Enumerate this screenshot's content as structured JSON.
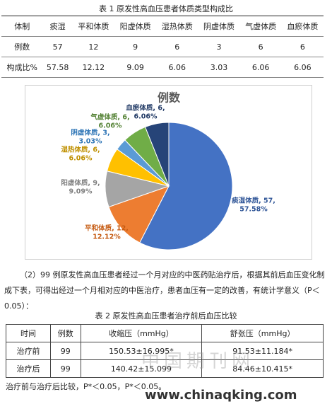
{
  "table1": {
    "title": "表 1 原发性高血压患者体质类型构成比",
    "header": [
      "体制",
      "痰湿",
      "平和体质",
      "阳虚体质",
      "湿热体质",
      "阴虚体质",
      "气虚体质",
      "血瘀体质"
    ],
    "rows": [
      [
        "例数",
        57,
        12,
        9,
        6,
        3,
        6,
        6
      ],
      [
        "构成比%",
        57.58,
        12.12,
        9.09,
        6.06,
        3.03,
        6.06,
        6.06
      ]
    ]
  },
  "chart_data": {
    "type": "pie",
    "title": "例数",
    "categories": [
      "痰湿体质",
      "平和体质",
      "阳虚体质",
      "湿热体质",
      "阴虚体质",
      "气虚体质",
      "血瘀体质"
    ],
    "values": [
      57,
      12,
      9,
      6,
      3,
      6,
      6
    ],
    "colors": [
      "#4472c4",
      "#ed7d31",
      "#a5a5a5",
      "#ffc000",
      "#5b9bd5",
      "#70ad47",
      "#264478"
    ],
    "data_labels": [
      [
        "痰湿体质, 57,",
        "57.58%"
      ],
      [
        "平和体质, 12,",
        "12.12%"
      ],
      [
        "阳虚体质, 9,",
        "9.09%"
      ],
      [
        "湿热体质, 6,",
        "6.06%"
      ],
      [
        "阴虚体质, 3,",
        "3.03%"
      ],
      [
        "气虚体质, 6,",
        "6.06%"
      ],
      [
        "血瘀体质, 6,",
        "6.06%"
      ]
    ]
  },
  "paragraph": "（2）99 例原发性高血压患者经过一个月对应的中医药贴治疗后，根据其前后血压变化制成下表，可得出经过一个月相对应的中医治疗，患者血压有一定的改善，有统计学意义（P＜0.05）：",
  "table2": {
    "title": "表 2 原发性高血压患者治疗前后血压比较",
    "header": [
      "时间",
      "例数",
      "收缩压（mmHg）",
      "舒张压（mmHg）"
    ],
    "rows": [
      [
        "治疗前",
        "99",
        "150.53±16.995*",
        "91.53±11.184*"
      ],
      [
        "治疗后",
        "99",
        "140.42±15.099",
        "84.46±10.415*"
      ]
    ]
  },
  "note": "治疗前与治疗后比较，P*＜0.05，P*＜0.05。",
  "watermark": {
    "name": "中国期刊网",
    "url": "www.chinaqking.com"
  }
}
